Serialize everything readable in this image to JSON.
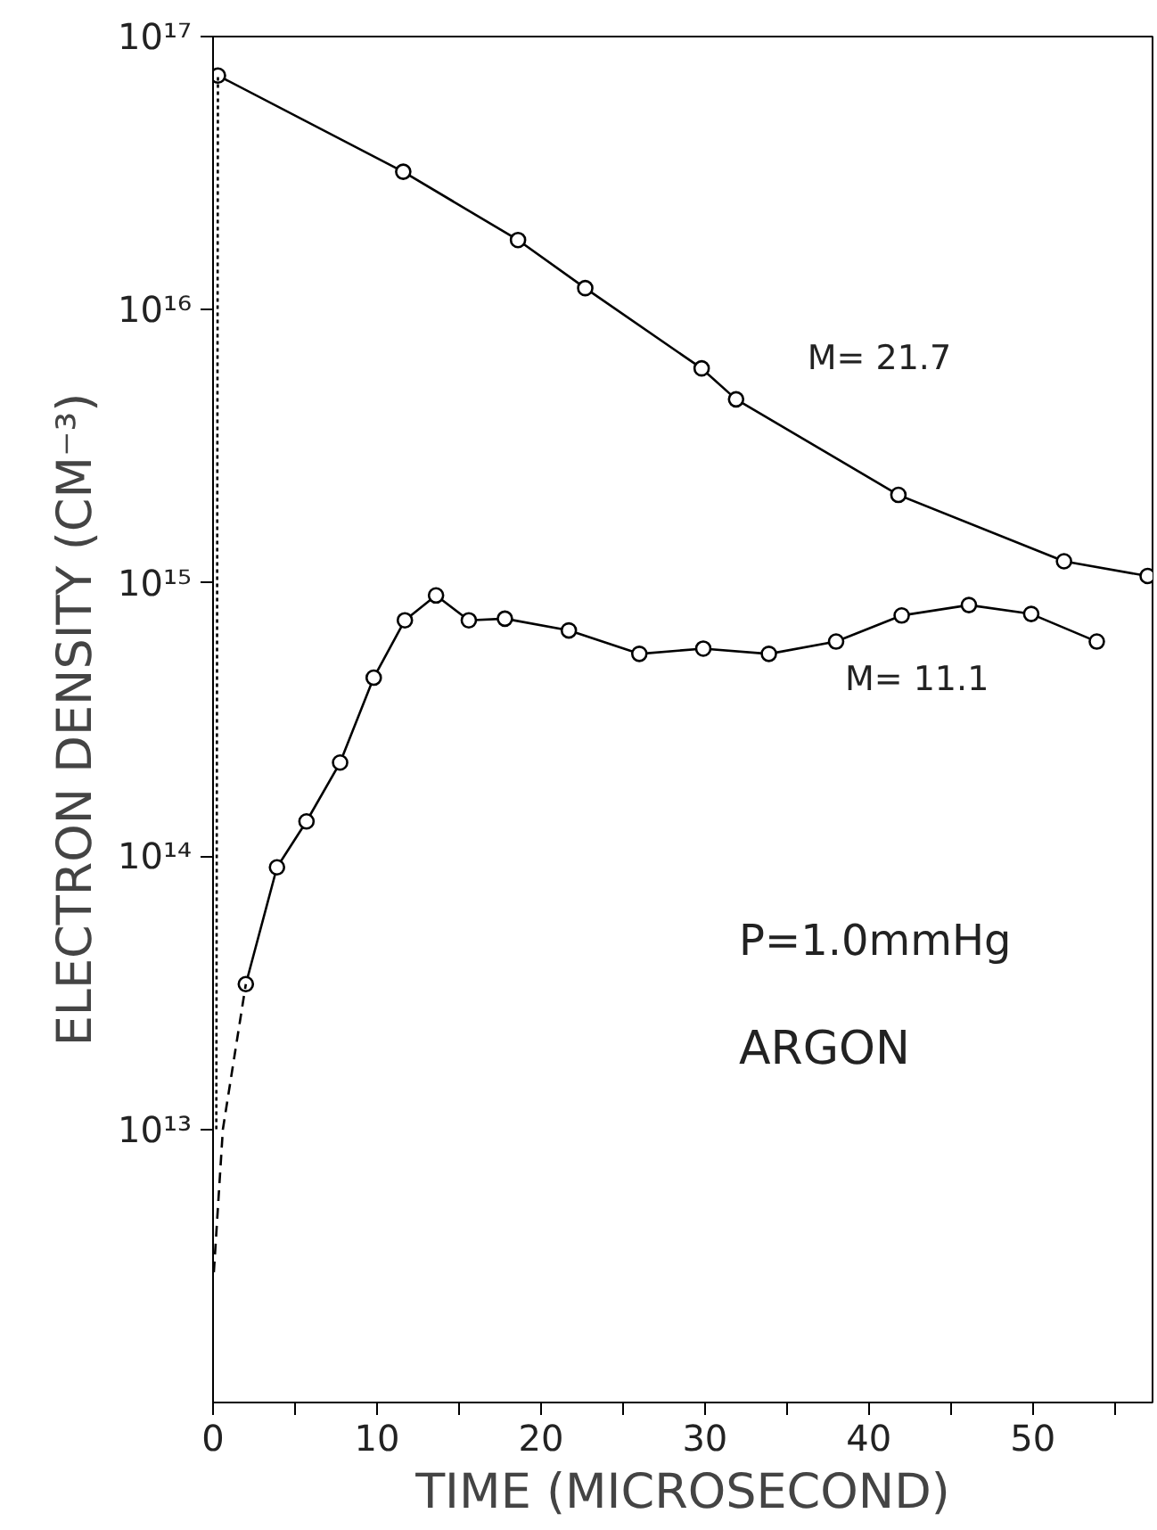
{
  "chart_data": {
    "type": "line",
    "xlabel": "TIME (MICROSECOND)",
    "ylabel": "ELECTRON DENSITY (CM⁻³)",
    "annotations": [
      "P=1.0mmHg",
      "ARGON"
    ],
    "log": "y",
    "grid": false,
    "marker": "circle",
    "line_style": "solid",
    "xlim": [
      0,
      57.3
    ],
    "xticks": [
      0,
      {
        "value": 5,
        "label": null
      },
      10,
      {
        "value": 15,
        "label": null
      },
      20,
      {
        "value": 25,
        "label": null
      },
      30,
      {
        "value": 35,
        "label": null
      },
      40,
      {
        "value": 45,
        "label": null
      },
      50,
      {
        "value": 55,
        "label": null
      }
    ],
    "ylim": [
      1000000000000.0,
      1e+17
    ],
    "yticks": [
      {
        "value": 10000000000000.0,
        "label": "10¹³"
      },
      {
        "value": 100000000000000.0,
        "label": "10¹⁴"
      },
      {
        "value": 1000000000000000.0,
        "label": "10¹⁵"
      },
      {
        "value": 1e+16,
        "label": "10¹⁶"
      },
      {
        "value": 1e+17,
        "label": "10¹⁷"
      }
    ],
    "series": [
      {
        "name": "M= 21.7",
        "color": "#000000",
        "x": [
          0.3,
          11.6,
          18.6,
          22.7,
          29.8,
          31.9,
          41.8,
          51.9,
          57.0
        ],
        "values": [
          7.2e+16,
          3.2e+16,
          1.8e+16,
          1.2e+16,
          6100000000000000.0,
          4700000000000000.0,
          2100000000000000.0,
          1200000000000000.0,
          1060000000000000.0
        ]
      },
      {
        "name": "M= 11.1",
        "color": "#000000",
        "x": [
          2.0,
          3.9,
          5.7,
          7.75,
          9.8,
          11.7,
          13.6,
          15.6,
          17.8,
          21.7,
          26.0,
          29.9,
          33.9,
          38.0,
          42.0,
          46.1,
          49.9,
          53.9
        ],
        "values": [
          34000000000000.0,
          91000000000000.0,
          134000000000000.0,
          220000000000000.0,
          450000000000000.0,
          730000000000000.0,
          900000000000000.0,
          730000000000000.0,
          740000000000000.0,
          670000000000000.0,
          550000000000000.0,
          575000000000000.0,
          550000000000000.0,
          610000000000000.0,
          760000000000000.0,
          830000000000000.0,
          770000000000000.0,
          610000000000000.0
        ]
      },
      {
        "color": "#000000",
        "marker": "none",
        "line_style": "dotted",
        "x": [
          0.2,
          0.3
        ],
        "values": [
          10000000000000.0,
          7.2e+16
        ]
      },
      {
        "color": "#000000",
        "marker": "none",
        "line_style": "dashed",
        "x": [
          0.05,
          0.6,
          2.0
        ],
        "values": [
          3000000000000.0,
          10000000000000.0,
          34000000000000.0
        ]
      }
    ]
  }
}
